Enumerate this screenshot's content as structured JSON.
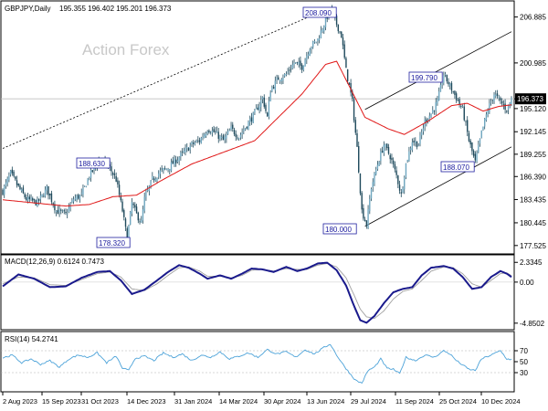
{
  "chart_data": [
    {
      "type": "candlestick",
      "symbol_label": "GBPJPY,Daily",
      "ohlc_label": "195.355 196.402 195.201 196.373",
      "watermark": "Action Forex",
      "y_ticks": [
        "206.885",
        "200.985",
        "196.373",
        "195.120",
        "192.145",
        "189.255",
        "186.390",
        "183.435",
        "180.445",
        "177.525"
      ],
      "current_price": "196.373",
      "ylim": [
        176.8,
        208.6
      ],
      "annotations": [
        {
          "text": "208.090",
          "value": 208.09
        },
        {
          "text": "199.790",
          "value": 199.79
        },
        {
          "text": "188.630",
          "value": 188.63
        },
        {
          "text": "188.070",
          "value": 188.07
        },
        {
          "text": "178.320",
          "value": 178.32
        },
        {
          "text": "180.000",
          "value": 180.0
        }
      ],
      "x_ticks": [
        "2 Aug 2023",
        "15 Sep 2023",
        "31 Oct 2023",
        "14 Dec 2023",
        "31 Jan 2024",
        "14 Mar 2024",
        "30 Apr 2024",
        "13 Jun 2024",
        "29 Jul 2024",
        "11 Sep 2024",
        "25 Oct 2024",
        "10 Dec 2024"
      ],
      "close_path": [
        [
          0,
          184.5
        ],
        [
          5,
          186.8
        ],
        [
          10,
          185.0
        ],
        [
          15,
          183.5
        ],
        [
          22,
          183.0
        ],
        [
          28,
          184.8
        ],
        [
          34,
          182.0
        ],
        [
          40,
          181.5
        ],
        [
          45,
          183.5
        ],
        [
          50,
          184.0
        ],
        [
          55,
          186.5
        ],
        [
          62,
          188.6
        ],
        [
          68,
          187.5
        ],
        [
          72,
          186.0
        ],
        [
          76,
          182.0
        ],
        [
          79,
          178.4
        ],
        [
          82,
          183.0
        ],
        [
          85,
          181.5
        ],
        [
          88,
          180.5
        ],
        [
          90,
          183.5
        ],
        [
          95,
          186.0
        ],
        [
          100,
          187.0
        ],
        [
          105,
          187.5
        ],
        [
          110,
          188.5
        ],
        [
          115,
          189.5
        ],
        [
          120,
          190.5
        ],
        [
          125,
          191.0
        ],
        [
          130,
          192.5
        ],
        [
          135,
          192.0
        ],
        [
          140,
          191.0
        ],
        [
          145,
          192.5
        ],
        [
          150,
          191.5
        ],
        [
          155,
          193.0
        ],
        [
          160,
          194.5
        ],
        [
          165,
          196.5
        ],
        [
          168,
          194.0
        ],
        [
          170,
          197.5
        ],
        [
          175,
          199.0
        ],
        [
          180,
          199.5
        ],
        [
          185,
          201.0
        ],
        [
          190,
          200.5
        ],
        [
          195,
          203.0
        ],
        [
          200,
          204.0
        ],
        [
          205,
          206.5
        ],
        [
          208,
          208.0
        ],
        [
          210,
          207.0
        ],
        [
          215,
          204.5
        ],
        [
          218,
          200.0
        ],
        [
          222,
          196.0
        ],
        [
          225,
          190.0
        ],
        [
          228,
          182.0
        ],
        [
          231,
          180.2
        ],
        [
          234,
          185.0
        ],
        [
          238,
          188.0
        ],
        [
          242,
          190.5
        ],
        [
          246,
          189.0
        ],
        [
          250,
          186.5
        ],
        [
          253,
          184.0
        ],
        [
          256,
          188.0
        ],
        [
          260,
          191.0
        ],
        [
          264,
          190.5
        ],
        [
          268,
          193.5
        ],
        [
          272,
          194.5
        ],
        [
          276,
          196.0
        ],
        [
          280,
          199.5
        ],
        [
          284,
          198.0
        ],
        [
          288,
          196.5
        ],
        [
          292,
          195.0
        ],
        [
          296,
          191.0
        ],
        [
          300,
          188.2
        ],
        [
          304,
          192.0
        ],
        [
          308,
          195.0
        ],
        [
          312,
          197.0
        ],
        [
          316,
          196.0
        ],
        [
          320,
          195.0
        ],
        [
          323,
          196.4
        ]
      ],
      "ma_path": [
        [
          0,
          183.4
        ],
        [
          20,
          183.0
        ],
        [
          40,
          182.6
        ],
        [
          55,
          182.8
        ],
        [
          70,
          183.8
        ],
        [
          85,
          184.0
        ],
        [
          100,
          185.8
        ],
        [
          120,
          188.0
        ],
        [
          140,
          189.5
        ],
        [
          160,
          191.0
        ],
        [
          175,
          194.0
        ],
        [
          190,
          197.0
        ],
        [
          205,
          200.8
        ],
        [
          212,
          201.2
        ],
        [
          220,
          198.0
        ],
        [
          230,
          194.0
        ],
        [
          245,
          192.5
        ],
        [
          255,
          191.8
        ],
        [
          270,
          193.5
        ],
        [
          285,
          195.5
        ],
        [
          295,
          195.8
        ],
        [
          305,
          194.8
        ],
        [
          315,
          195.4
        ],
        [
          323,
          195.6
        ]
      ],
      "channels": [
        {
          "from": [
            0,
            190.0
          ],
          "to": [
            208,
            208.09
          ]
        },
        {
          "from": [
            230,
            195.0
          ],
          "to": [
            323,
            205.0
          ]
        },
        {
          "from": [
            230,
            180.0
          ],
          "to": [
            323,
            190.2
          ]
        }
      ]
    },
    {
      "type": "line",
      "label": "MACD(12,26,9) 0.6124 0.7473",
      "y_ticks": [
        "2.3345",
        "0.00",
        "-4.8502"
      ],
      "ylim": [
        -5.3,
        2.9
      ],
      "macd_path": [
        [
          0,
          -0.5
        ],
        [
          10,
          0.9
        ],
        [
          20,
          0.4
        ],
        [
          30,
          -0.6
        ],
        [
          40,
          -0.5
        ],
        [
          50,
          0.5
        ],
        [
          60,
          1.2
        ],
        [
          68,
          1.3
        ],
        [
          75,
          0.2
        ],
        [
          82,
          -1.4
        ],
        [
          90,
          -0.9
        ],
        [
          98,
          0.2
        ],
        [
          105,
          1.2
        ],
        [
          112,
          2.0
        ],
        [
          118,
          1.7
        ],
        [
          125,
          1.0
        ],
        [
          130,
          0.4
        ],
        [
          138,
          0.8
        ],
        [
          145,
          0.4
        ],
        [
          152,
          1.0
        ],
        [
          158,
          1.6
        ],
        [
          165,
          1.5
        ],
        [
          172,
          1.2
        ],
        [
          180,
          1.8
        ],
        [
          187,
          1.3
        ],
        [
          193,
          1.6
        ],
        [
          200,
          2.2
        ],
        [
          206,
          2.3
        ],
        [
          212,
          1.4
        ],
        [
          218,
          -0.4
        ],
        [
          223,
          -2.8
        ],
        [
          227,
          -4.5
        ],
        [
          231,
          -4.8
        ],
        [
          236,
          -4.0
        ],
        [
          242,
          -2.5
        ],
        [
          248,
          -1.2
        ],
        [
          254,
          -0.8
        ],
        [
          260,
          -0.6
        ],
        [
          266,
          0.8
        ],
        [
          272,
          1.7
        ],
        [
          280,
          1.9
        ],
        [
          286,
          1.6
        ],
        [
          292,
          0.6
        ],
        [
          298,
          -0.8
        ],
        [
          304,
          -0.6
        ],
        [
          310,
          0.6
        ],
        [
          316,
          1.3
        ],
        [
          320,
          1.0
        ],
        [
          323,
          0.6
        ]
      ],
      "signal_path": [
        [
          0,
          -0.2
        ],
        [
          10,
          0.6
        ],
        [
          20,
          0.5
        ],
        [
          30,
          -0.3
        ],
        [
          40,
          -0.4
        ],
        [
          50,
          0.3
        ],
        [
          60,
          1.0
        ],
        [
          68,
          1.2
        ],
        [
          75,
          0.6
        ],
        [
          82,
          -0.8
        ],
        [
          90,
          -1.0
        ],
        [
          98,
          -0.2
        ],
        [
          105,
          0.8
        ],
        [
          112,
          1.7
        ],
        [
          118,
          1.8
        ],
        [
          125,
          1.3
        ],
        [
          130,
          0.7
        ],
        [
          138,
          0.7
        ],
        [
          145,
          0.5
        ],
        [
          152,
          0.8
        ],
        [
          158,
          1.4
        ],
        [
          165,
          1.5
        ],
        [
          172,
          1.3
        ],
        [
          180,
          1.6
        ],
        [
          187,
          1.5
        ],
        [
          193,
          1.5
        ],
        [
          200,
          2.0
        ],
        [
          206,
          2.2
        ],
        [
          212,
          1.8
        ],
        [
          218,
          0.5
        ],
        [
          223,
          -1.5
        ],
        [
          227,
          -3.2
        ],
        [
          231,
          -4.1
        ],
        [
          236,
          -4.3
        ],
        [
          242,
          -3.4
        ],
        [
          248,
          -2.0
        ],
        [
          254,
          -1.1
        ],
        [
          260,
          -0.8
        ],
        [
          266,
          0.2
        ],
        [
          272,
          1.3
        ],
        [
          280,
          1.8
        ],
        [
          286,
          1.7
        ],
        [
          292,
          1.0
        ],
        [
          298,
          -0.2
        ],
        [
          304,
          -0.6
        ],
        [
          310,
          0.2
        ],
        [
          316,
          1.0
        ],
        [
          320,
          1.1
        ],
        [
          323,
          0.75
        ]
      ]
    },
    {
      "type": "line",
      "label": "RSI(14) 54.2741",
      "y_ticks": [
        "70",
        "50",
        "30"
      ],
      "ylim": [
        0,
        100
      ],
      "rsi_path": [
        [
          0,
          57
        ],
        [
          6,
          62
        ],
        [
          12,
          48
        ],
        [
          18,
          55
        ],
        [
          24,
          45
        ],
        [
          30,
          52
        ],
        [
          36,
          40
        ],
        [
          42,
          55
        ],
        [
          48,
          62
        ],
        [
          54,
          58
        ],
        [
          60,
          66
        ],
        [
          66,
          48
        ],
        [
          72,
          60
        ],
        [
          76,
          38
        ],
        [
          80,
          34
        ],
        [
          84,
          56
        ],
        [
          90,
          60
        ],
        [
          96,
          52
        ],
        [
          102,
          66
        ],
        [
          108,
          58
        ],
        [
          114,
          64
        ],
        [
          120,
          52
        ],
        [
          126,
          62
        ],
        [
          132,
          58
        ],
        [
          138,
          68
        ],
        [
          144,
          55
        ],
        [
          150,
          60
        ],
        [
          156,
          66
        ],
        [
          162,
          58
        ],
        [
          168,
          72
        ],
        [
          174,
          64
        ],
        [
          180,
          68
        ],
        [
          186,
          58
        ],
        [
          192,
          72
        ],
        [
          198,
          64
        ],
        [
          204,
          76
        ],
        [
          208,
          82
        ],
        [
          212,
          62
        ],
        [
          216,
          45
        ],
        [
          220,
          30
        ],
        [
          224,
          16
        ],
        [
          228,
          11
        ],
        [
          232,
          34
        ],
        [
          236,
          40
        ],
        [
          240,
          55
        ],
        [
          244,
          38
        ],
        [
          248,
          36
        ],
        [
          252,
          28
        ],
        [
          256,
          58
        ],
        [
          262,
          52
        ],
        [
          268,
          62
        ],
        [
          274,
          58
        ],
        [
          280,
          70
        ],
        [
          284,
          64
        ],
        [
          288,
          52
        ],
        [
          292,
          44
        ],
        [
          296,
          36
        ],
        [
          300,
          34
        ],
        [
          304,
          55
        ],
        [
          310,
          62
        ],
        [
          316,
          70
        ],
        [
          320,
          55
        ],
        [
          323,
          54
        ]
      ]
    }
  ]
}
